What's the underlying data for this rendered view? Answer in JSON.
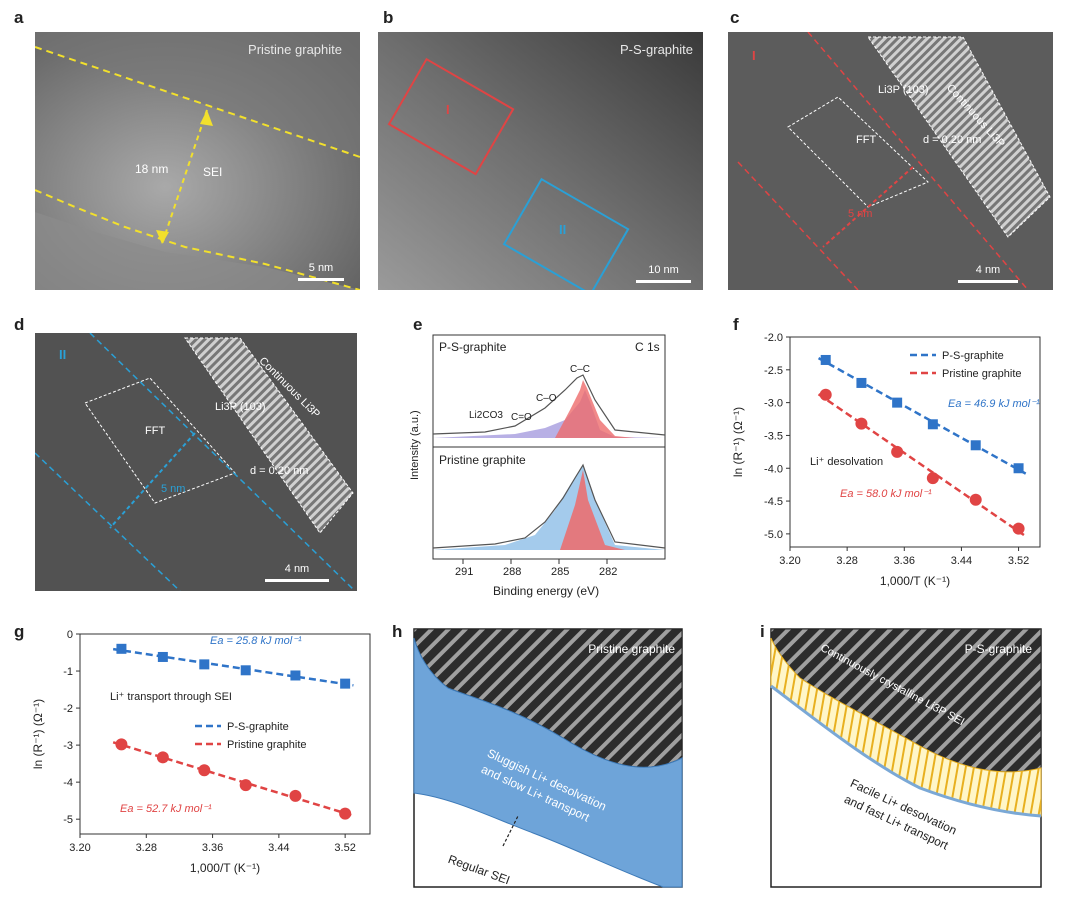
{
  "figure": {
    "a": {
      "label": "a",
      "title": "Pristine graphite",
      "scale": "5 nm",
      "thickness": "18 nm",
      "sei": "SEI"
    },
    "b": {
      "label": "b",
      "title": "P-S-graphite",
      "scale": "10 nm",
      "region1": "I",
      "region2": "II"
    },
    "c": {
      "label": "c",
      "region": "I",
      "continuous": "Continuous Li3P",
      "plane": "Li3P (103)",
      "fft": "FFT",
      "dspacing": "d = 0.20 nm",
      "thickness": "5 nm",
      "scale": "4 nm"
    },
    "d": {
      "label": "d",
      "region": "II",
      "continuous": "Continuous Li3P",
      "plane": "Li3P (103)",
      "fft": "FFT",
      "dspacing": "d = 0.20 nm",
      "thickness": "5 nm",
      "scale": "4 nm"
    },
    "e": {
      "label": "e",
      "top_title": "P-S-graphite",
      "c1s": "C 1s",
      "bottom_title": "Pristine graphite",
      "ylabel": "Intensity (a.u.)",
      "xlabel": "Binding energy (eV)",
      "ticks": [
        "291",
        "288",
        "285",
        "282"
      ],
      "peaks": {
        "cc": "C–C",
        "co": "C–O",
        "c_eq_o": "C=O",
        "li2co3": "Li2CO3"
      }
    },
    "h": {
      "label": "h",
      "title": "Pristine graphite",
      "text1": "Sluggish Li+ desolvation",
      "text2": "and slow Li+ transport",
      "sei": "Regular SEI"
    },
    "i": {
      "label": "i",
      "title": "P-S-graphite",
      "crystal": "Continuously crystalline Li3P SEI",
      "text1": "Facile Li+ desolvation",
      "text2": "and fast Li+ transport"
    }
  },
  "chart_data": [
    {
      "panel": "f",
      "type": "scatter",
      "xlabel": "1,000/T (K⁻¹)",
      "ylabel": "ln (R⁻¹) (Ω⁻¹)",
      "xlim": [
        3.2,
        3.55
      ],
      "ylim": [
        -5.2,
        -2.0
      ],
      "xticks": [
        "3.20",
        "3.28",
        "3.36",
        "3.44",
        "3.52"
      ],
      "yticks": [
        "-2.0",
        "-2.5",
        "-3.0",
        "-3.5",
        "-4.0",
        "-4.5",
        "-5.0"
      ],
      "annotation": "Li⁺ desolvation",
      "series": [
        {
          "name": "P-S-graphite",
          "color": "#2f74c8",
          "marker": "square",
          "energy": "Ea = 46.9 kJ mol⁻¹",
          "x": [
            3.25,
            3.3,
            3.35,
            3.4,
            3.46,
            3.52
          ],
          "y": [
            -2.35,
            -2.7,
            -3.0,
            -3.33,
            -3.65,
            -4.0
          ]
        },
        {
          "name": "Pristine graphite",
          "color": "#e04444",
          "marker": "circle",
          "energy": "Ea = 58.0 kJ mol⁻¹",
          "x": [
            3.25,
            3.3,
            3.35,
            3.4,
            3.46,
            3.52
          ],
          "y": [
            -2.88,
            -3.32,
            -3.75,
            -4.15,
            -4.48,
            -4.92
          ]
        }
      ]
    },
    {
      "panel": "g",
      "type": "scatter",
      "xlabel": "1,000/T (K⁻¹)",
      "ylabel": "ln (R⁻¹) (Ω⁻¹)",
      "xlim": [
        3.2,
        3.55
      ],
      "ylim": [
        -5.4,
        0
      ],
      "xticks": [
        "3.20",
        "3.28",
        "3.36",
        "3.44",
        "3.52"
      ],
      "yticks": [
        "0",
        "-1",
        "-2",
        "-3",
        "-4",
        "-5"
      ],
      "annotation": "Li⁺ transport through SEI",
      "series": [
        {
          "name": "P-S-graphite",
          "color": "#2f74c8",
          "marker": "square",
          "energy": "Ea = 25.8 kJ mol⁻¹",
          "x": [
            3.25,
            3.3,
            3.35,
            3.4,
            3.46,
            3.52
          ],
          "y": [
            -0.4,
            -0.62,
            -0.82,
            -0.98,
            -1.12,
            -1.34
          ]
        },
        {
          "name": "Pristine graphite",
          "color": "#e04444",
          "marker": "circle",
          "energy": "Ea = 52.7 kJ mol⁻¹",
          "x": [
            3.25,
            3.3,
            3.35,
            3.4,
            3.46,
            3.52
          ],
          "y": [
            -2.98,
            -3.33,
            -3.68,
            -4.08,
            -4.37,
            -4.85
          ]
        }
      ]
    }
  ]
}
